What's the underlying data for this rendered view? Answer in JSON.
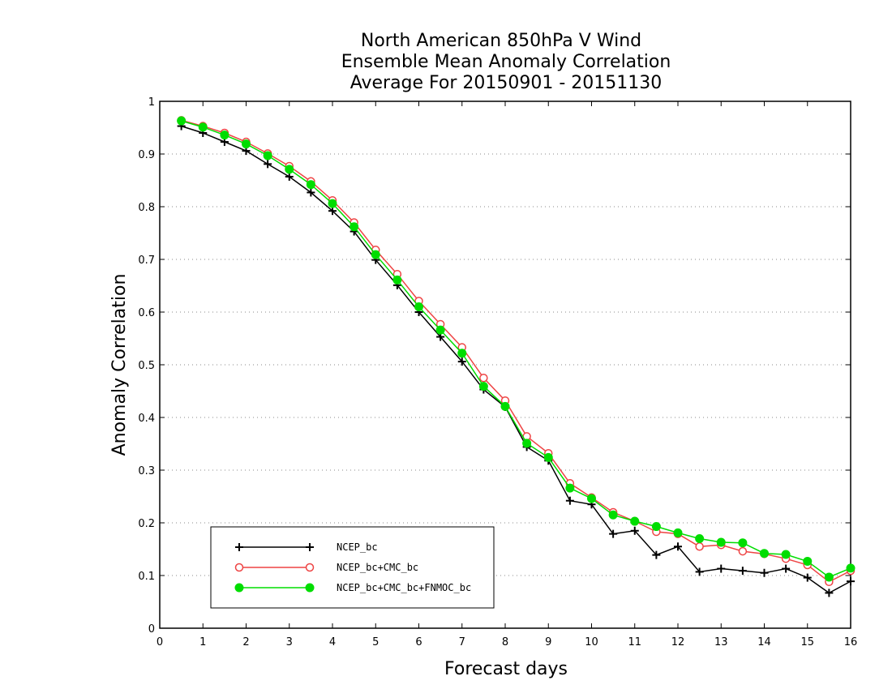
{
  "chart_data": {
    "type": "line",
    "title": [
      "North American 850hPa V Wind",
      "Ensemble Mean Anomaly Correlation",
      "Average For 20150901 - 20151130"
    ],
    "xlabel": "Forecast days",
    "ylabel": "Anomaly Correlation",
    "xlim": [
      0,
      16
    ],
    "ylim": [
      0,
      1
    ],
    "xticks": [
      "0",
      "1",
      "2",
      "3",
      "4",
      "5",
      "6",
      "7",
      "8",
      "9",
      "10",
      "11",
      "12",
      "13",
      "14",
      "15",
      "16"
    ],
    "yticks": [
      "0",
      "0.1",
      "0.2",
      "0.3",
      "0.4",
      "0.5",
      "0.6",
      "0.7",
      "0.8",
      "0.9",
      "1"
    ],
    "grid": "horizontal dotted",
    "legend_position": "bottom-left",
    "x": [
      0.5,
      1,
      1.5,
      2,
      2.5,
      3,
      3.5,
      4,
      4.5,
      5,
      5.5,
      6,
      6.5,
      7,
      7.5,
      8,
      8.5,
      9,
      9.5,
      10,
      10.5,
      11,
      11.5,
      12,
      12.5,
      13,
      13.5,
      14,
      14.5,
      15,
      15.5,
      16
    ],
    "series": [
      {
        "name": "NCEP_bc",
        "color": "#000000",
        "marker": "plus",
        "values": [
          0.953,
          0.94,
          0.923,
          0.906,
          0.881,
          0.857,
          0.827,
          0.792,
          0.753,
          0.699,
          0.651,
          0.6,
          0.553,
          0.506,
          0.453,
          0.42,
          0.344,
          0.318,
          0.242,
          0.235,
          0.179,
          0.185,
          0.139,
          0.155,
          0.107,
          0.113,
          0.109,
          0.105,
          0.113,
          0.096,
          0.067,
          0.089
        ]
      },
      {
        "name": "NCEP_bc+CMC_bc",
        "color": "#ee4444",
        "marker": "open-circle",
        "values": [
          0.964,
          0.953,
          0.94,
          0.923,
          0.901,
          0.877,
          0.848,
          0.812,
          0.77,
          0.718,
          0.672,
          0.621,
          0.577,
          0.533,
          0.475,
          0.432,
          0.364,
          0.332,
          0.275,
          0.248,
          0.22,
          0.203,
          0.183,
          0.179,
          0.155,
          0.158,
          0.146,
          0.141,
          0.132,
          0.12,
          0.088,
          0.109
        ]
      },
      {
        "name": "NCEP_bc+CMC_bc+FNMOC_bc",
        "color": "#00dd00",
        "marker": "filled-circle",
        "values": [
          0.963,
          0.951,
          0.936,
          0.919,
          0.897,
          0.871,
          0.842,
          0.806,
          0.762,
          0.709,
          0.661,
          0.61,
          0.566,
          0.522,
          0.459,
          0.421,
          0.351,
          0.324,
          0.266,
          0.246,
          0.215,
          0.203,
          0.193,
          0.181,
          0.17,
          0.163,
          0.162,
          0.142,
          0.14,
          0.127,
          0.097,
          0.114
        ]
      }
    ]
  }
}
